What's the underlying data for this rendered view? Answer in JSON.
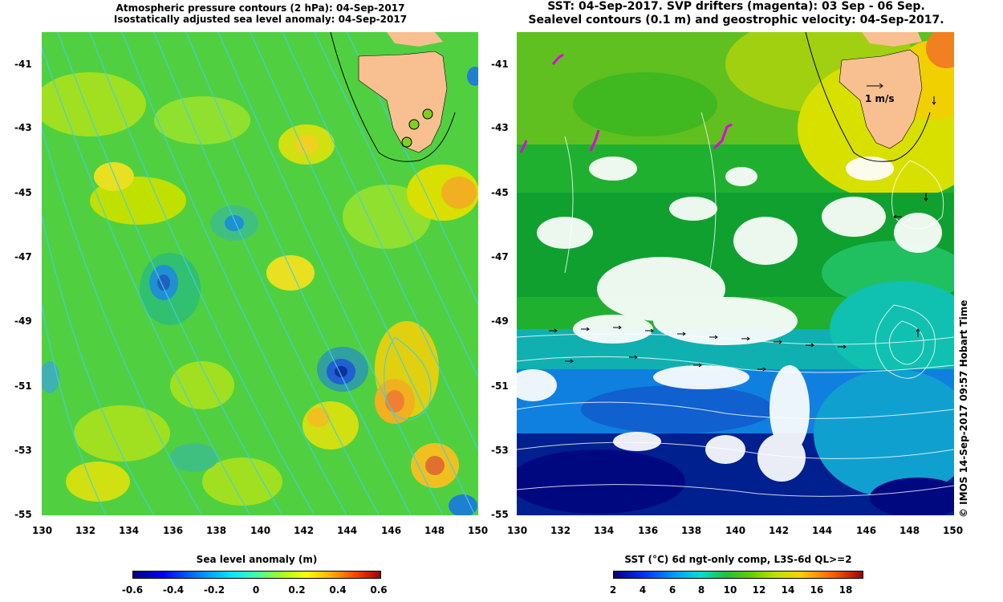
{
  "left_panel": {
    "title_line1": "Atmospheric pressure contours (2 hPa): 04-Sep-2017",
    "title_line2": "Isostatically adjusted sea level anomaly: 04-Sep-2017",
    "x_ticks": [
      "130",
      "132",
      "134",
      "136",
      "138",
      "140",
      "142",
      "144",
      "146",
      "148",
      "150"
    ],
    "y_ticks": [
      "-41",
      "-43",
      "-45",
      "-47",
      "-49",
      "-51",
      "-53",
      "-55"
    ],
    "colorbar": {
      "title": "Sea level anomaly (m)",
      "ticks": [
        "-0.6",
        "-0.4",
        "-0.2",
        "0",
        "0.2",
        "0.4",
        "0.6"
      ],
      "colors": [
        "#000080",
        "#0000ff",
        "#0080ff",
        "#00e0ff",
        "#40ffa0",
        "#80ff20",
        "#ffff00",
        "#ffb000",
        "#ff4000",
        "#a00000"
      ]
    },
    "palette": {
      "land": "#f8c090",
      "contour": "#40d0e8",
      "marker": "#80d020"
    }
  },
  "right_panel": {
    "title_line1": "SST: 04-Sep-2017. SVP drifters (magenta): 03 Sep - 06 Sep.",
    "title_line2": "Sealevel contours (0.1 m) and geostrophic velocity: 04-Sep-2017.",
    "velocity_label": "1 m/s",
    "x_ticks": [
      "130",
      "132",
      "134",
      "136",
      "138",
      "140",
      "142",
      "144",
      "146",
      "148",
      "150"
    ],
    "y_ticks": [
      "-41",
      "-43",
      "-45",
      "-47",
      "-49",
      "-51",
      "-53",
      "-55"
    ],
    "colorbar": {
      "title": "SST (°C) 6d ngt-only comp, L3S-6d QL>=2",
      "ticks": [
        "2",
        "4",
        "6",
        "8",
        "10",
        "12",
        "14",
        "16",
        "18"
      ],
      "colors": [
        "#000080",
        "#0030ff",
        "#00a0ff",
        "#00e0d0",
        "#20c040",
        "#60d000",
        "#c0e000",
        "#ffd000",
        "#ff6000",
        "#a00000"
      ]
    },
    "palette": {
      "land": "#f8c090",
      "drifters": "#e000e0",
      "cloud": "#ffffff"
    }
  },
  "credit": "© IMOS 14-Sep-2017 09:57 Hobart Time"
}
